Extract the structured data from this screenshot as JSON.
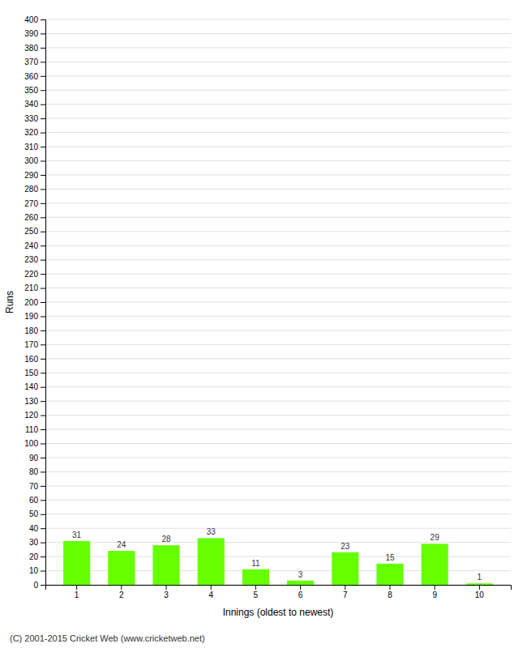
{
  "chart_data": {
    "type": "bar",
    "categories": [
      "1",
      "2",
      "3",
      "4",
      "5",
      "6",
      "7",
      "8",
      "9",
      "10"
    ],
    "values": [
      31,
      24,
      28,
      33,
      11,
      3,
      23,
      15,
      29,
      1
    ],
    "color": "#66ff00",
    "xlabel": "Innings (oldest to newest)",
    "ylabel": "Runs",
    "ylim": [
      0,
      400
    ],
    "yticks": [
      0,
      10,
      20,
      30,
      40,
      50,
      60,
      70,
      80,
      90,
      100,
      110,
      120,
      130,
      140,
      150,
      160,
      170,
      180,
      190,
      200,
      210,
      220,
      230,
      240,
      250,
      260,
      270,
      280,
      290,
      300,
      310,
      320,
      330,
      340,
      350,
      360,
      370,
      380,
      390,
      400
    ],
    "grid": true,
    "data_labels": true,
    "annotations": [
      "(C) 2001-2015 Cricket Web (www.cricketweb.net)"
    ]
  }
}
